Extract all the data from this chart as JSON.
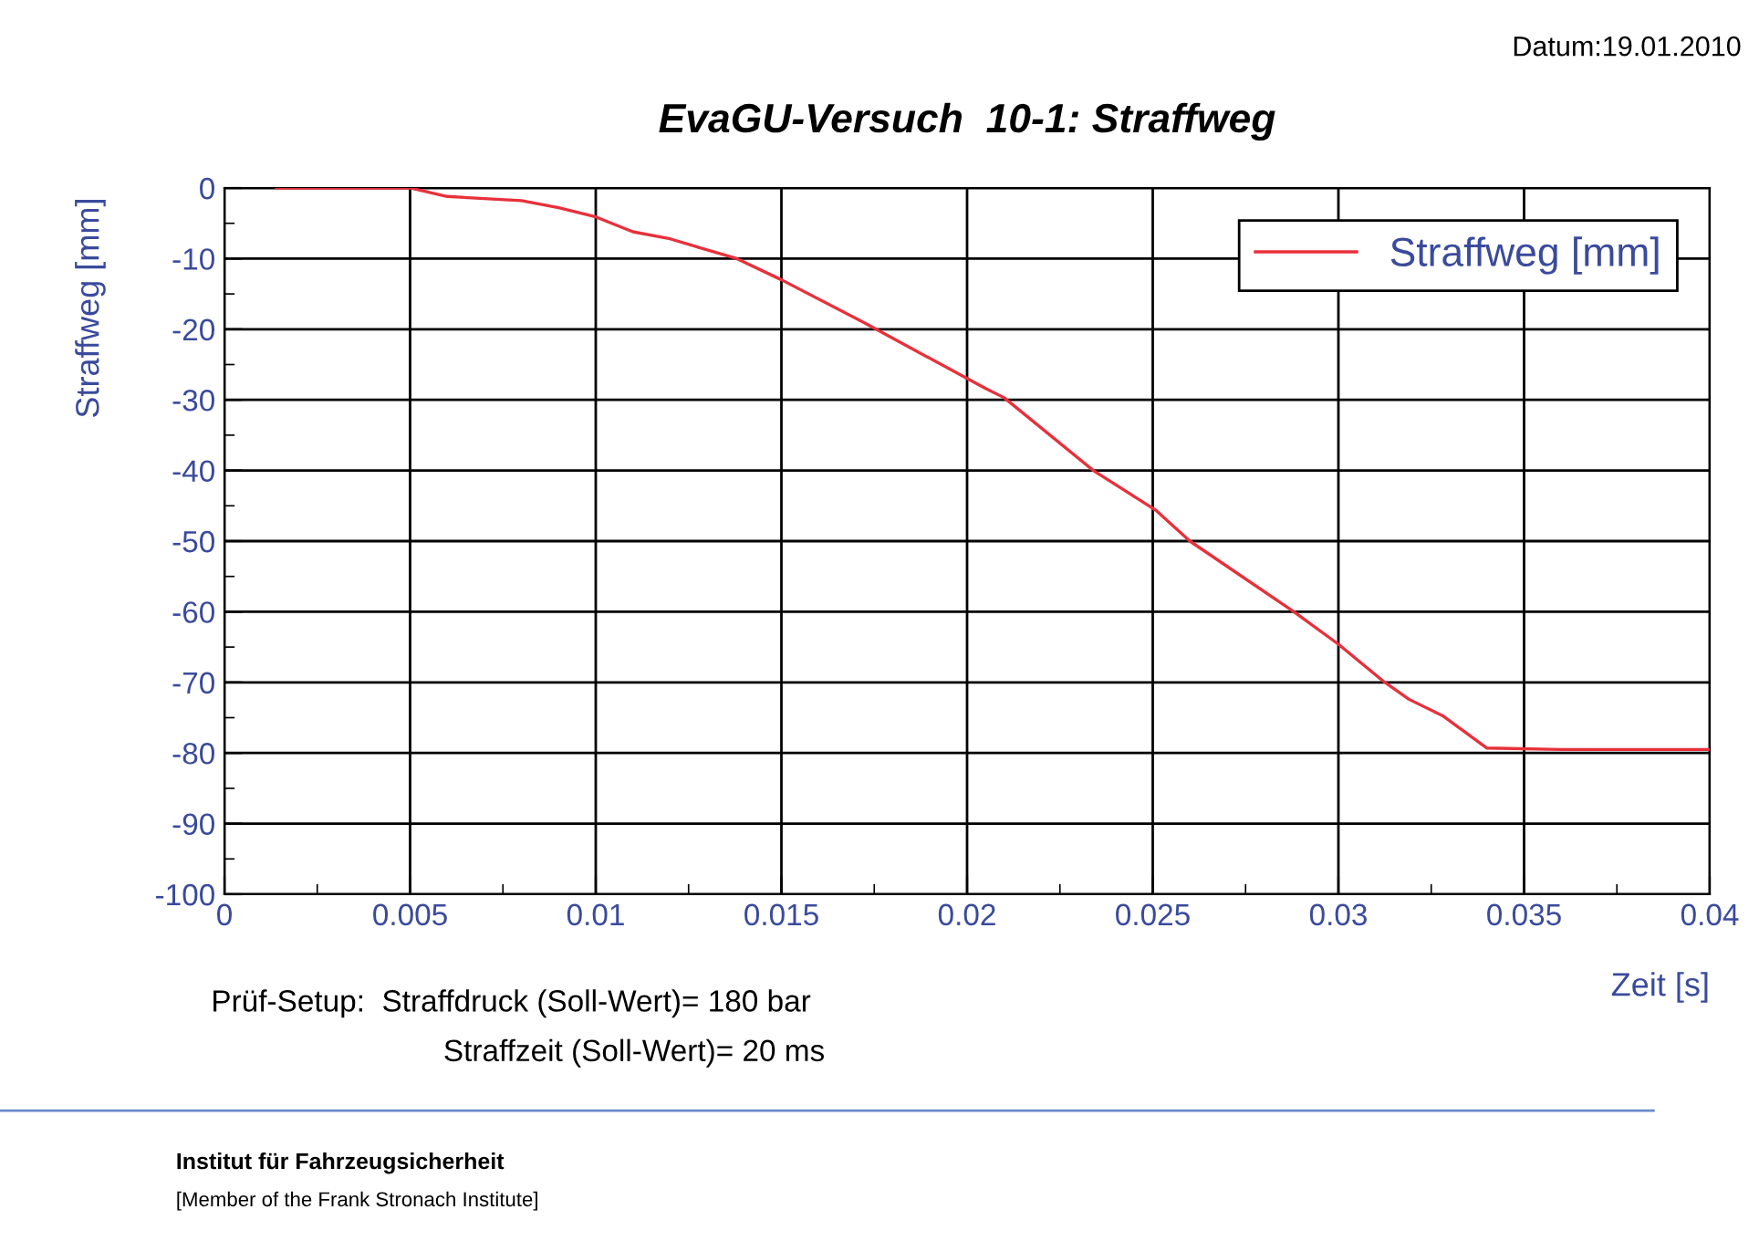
{
  "chart_data": {
    "type": "line",
    "title": "EvaGU-Versuch  10-1: Straffweg",
    "xlabel": "Zeit [s]",
    "ylabel": "Straffweg [mm]",
    "x": [
      0.0014,
      0.004,
      0.005,
      0.006,
      0.008,
      0.009,
      0.01,
      0.011,
      0.012,
      0.0138,
      0.015,
      0.0172,
      0.0205,
      0.021,
      0.0234,
      0.0251,
      0.026,
      0.0288,
      0.03,
      0.0312,
      0.0319,
      0.0328,
      0.034,
      0.036,
      0.04
    ],
    "series": [
      {
        "name": "Straffweg [mm]",
        "color": "#e8303a",
        "values": [
          0,
          0,
          0,
          -1.2,
          -1.8,
          -2.8,
          -4.1,
          -6.2,
          -7.2,
          -10,
          -13,
          -19,
          -28.4,
          -29.7,
          -40,
          -45.7,
          -50,
          -60,
          -64.6,
          -69.8,
          -72.4,
          -74.7,
          -79.3,
          -79.5,
          -79.5
        ]
      }
    ],
    "xlim": [
      0,
      0.04
    ],
    "xticks": [
      0,
      0.005,
      0.01,
      0.015,
      0.02,
      0.025,
      0.03,
      0.035,
      0.04
    ],
    "ylim": [
      -100,
      0
    ],
    "yticks": [
      -100,
      -90,
      -80,
      -70,
      -60,
      -50,
      -40,
      -30,
      -20,
      -10,
      0
    ],
    "grid": true,
    "legend": "top right",
    "marker": "none",
    "line_style": "solid",
    "annotations": [
      "Datum:19.01.2010",
      "Prüf-Setup:  Straffdruck (Soll-Wert)= 180 bar",
      "Straffzeit (Soll-Wert)= 20 ms",
      "Institut für Fahrzeugsicherheit",
      "[Member of the Frank Stronach Institute]"
    ]
  }
}
